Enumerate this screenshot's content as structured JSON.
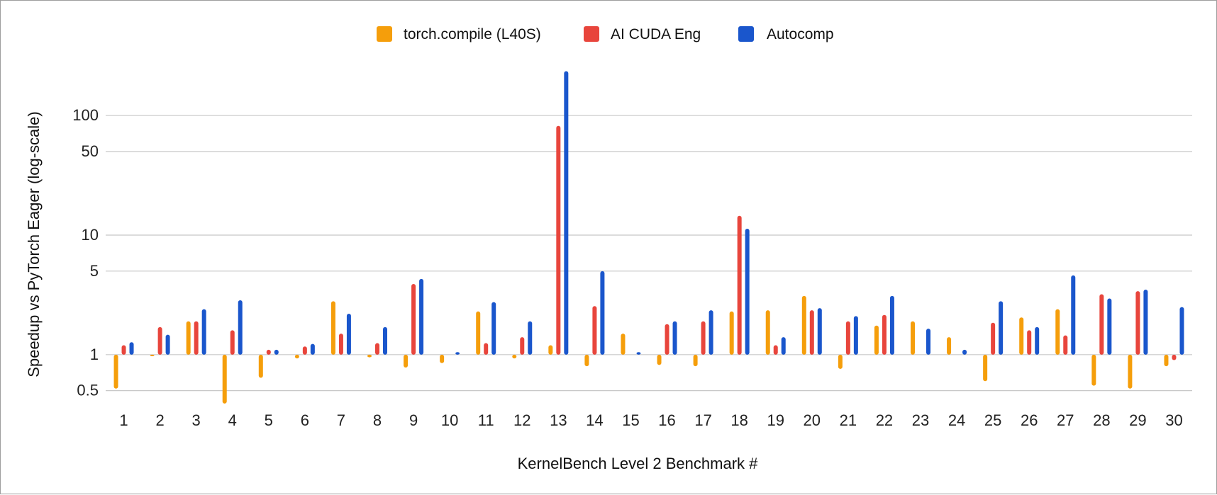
{
  "chart_data": {
    "type": "bar",
    "title": "",
    "xlabel": "KernelBench Level 2 Benchmark #",
    "ylabel": "Speedup vs PyTorch Eager (log-scale)",
    "yscale": "log",
    "ylim": [
      0.4,
      250
    ],
    "yticks": [
      0.5,
      1,
      5,
      10,
      50,
      100
    ],
    "ytick_labels": [
      "0.5",
      "1",
      "5",
      "10",
      "50",
      "100"
    ],
    "baseline": 1,
    "legend_position": "top-center",
    "categories": [
      "1",
      "2",
      "3",
      "4",
      "5",
      "6",
      "7",
      "8",
      "9",
      "10",
      "11",
      "12",
      "13",
      "14",
      "15",
      "16",
      "17",
      "18",
      "19",
      "20",
      "21",
      "22",
      "23",
      "24",
      "25",
      "26",
      "27",
      "28",
      "29",
      "30"
    ],
    "series": [
      {
        "name": "torch.compile (L40S)",
        "color": "#f59e0b",
        "values": [
          0.52,
          0.97,
          1.9,
          0.39,
          0.64,
          0.93,
          2.8,
          0.95,
          0.78,
          0.85,
          2.3,
          0.93,
          1.2,
          0.8,
          1.5,
          0.82,
          0.8,
          2.3,
          2.35,
          3.1,
          0.76,
          1.75,
          1.9,
          1.4,
          0.6,
          2.05,
          2.4,
          0.55,
          0.52,
          0.8
        ]
      },
      {
        "name": "AI CUDA Eng",
        "color": "#e8453c",
        "values": [
          1.2,
          1.7,
          1.9,
          1.6,
          1.1,
          1.17,
          1.5,
          1.25,
          3.9,
          null,
          1.25,
          1.4,
          82,
          2.55,
          null,
          1.8,
          1.9,
          14.5,
          1.2,
          2.35,
          1.9,
          2.15,
          null,
          null,
          1.85,
          1.6,
          1.45,
          3.2,
          3.4,
          0.9
        ]
      },
      {
        "name": "Autocomp",
        "color": "#1a56cc",
        "values": [
          1.27,
          1.47,
          2.4,
          2.85,
          1.1,
          1.23,
          2.2,
          1.7,
          4.3,
          1.05,
          2.75,
          1.9,
          235,
          5.0,
          1.05,
          1.9,
          2.35,
          11.3,
          1.4,
          2.45,
          2.1,
          3.1,
          1.65,
          1.1,
          2.8,
          1.7,
          4.6,
          2.95,
          3.5,
          2.5
        ]
      }
    ]
  }
}
